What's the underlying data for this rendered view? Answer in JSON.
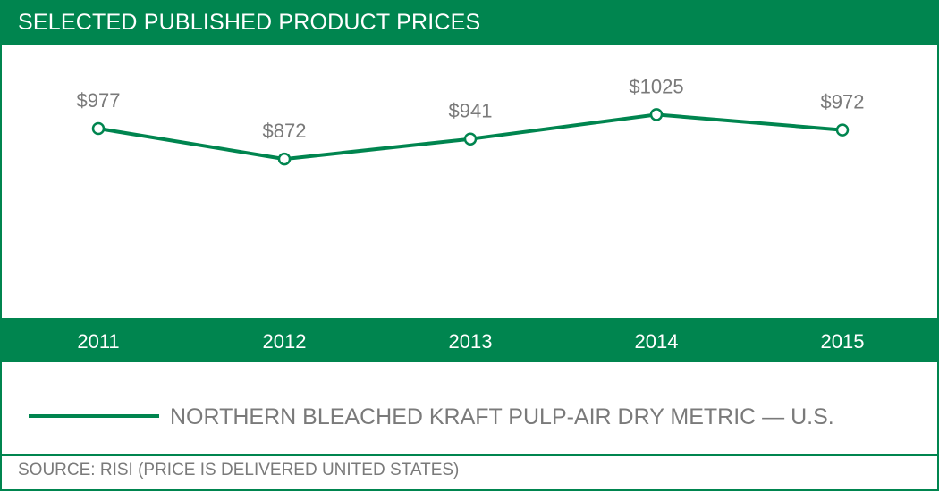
{
  "header": {
    "title": "SELECTED PUBLISHED PRODUCT PRICES"
  },
  "legend": {
    "label": "NORTHERN BLEACHED KRAFT PULP-AIR DRY METRIC — U.S."
  },
  "footer": {
    "source": "SOURCE: RISI (PRICE IS DELIVERED UNITED STATES)"
  },
  "colors": {
    "brand_green": "#00854f",
    "label_gray": "#7a7a7a",
    "background": "#ffffff"
  },
  "chart_data": {
    "type": "line",
    "title": "SELECTED PUBLISHED PRODUCT PRICES",
    "categories": [
      "2011",
      "2012",
      "2013",
      "2014",
      "2015"
    ],
    "series": [
      {
        "name": "NORTHERN BLEACHED KRAFT PULP-AIR DRY METRIC — U.S.",
        "values": [
          977,
          872,
          941,
          1025,
          972
        ],
        "labels": [
          "$977",
          "$872",
          "$941",
          "$1025",
          "$972"
        ]
      }
    ],
    "xlabel": "",
    "ylabel": "",
    "grid": false,
    "legend_position": "bottom"
  }
}
